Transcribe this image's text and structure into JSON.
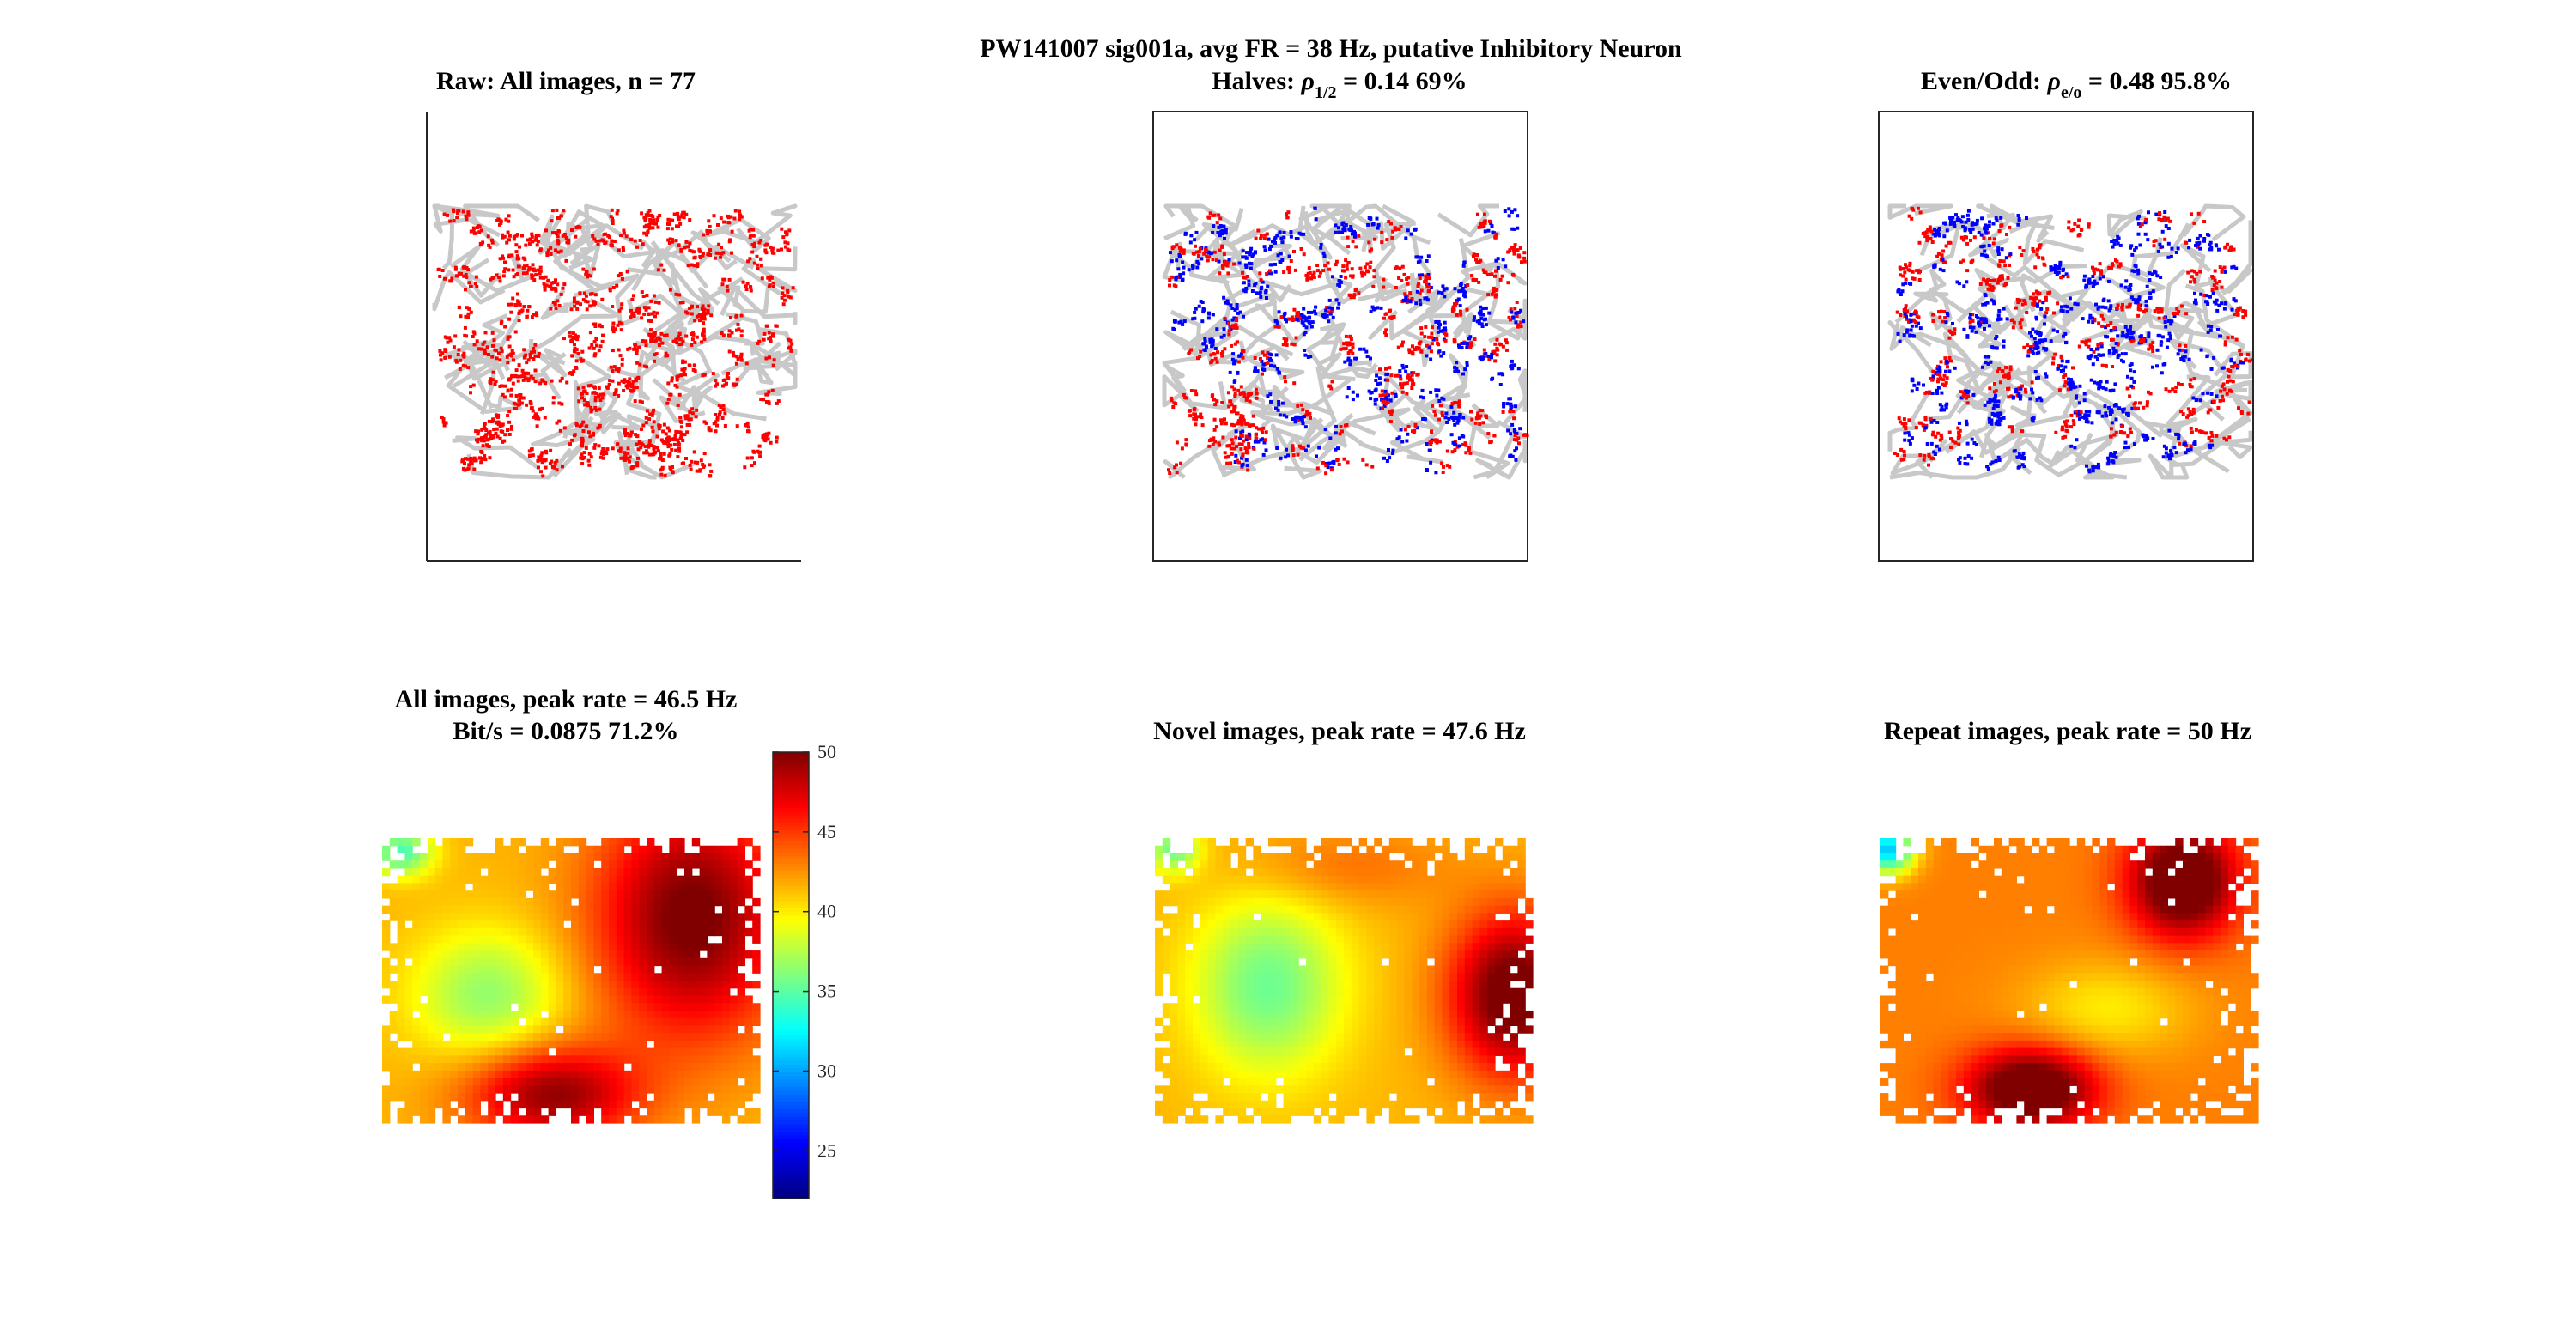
{
  "figure": {
    "suptitle": "PW141007  sig001a, avg FR = 38 Hz, putative Inhibitory Neuron"
  },
  "panels": {
    "raw": {
      "title": "Raw: All images, n = 77"
    },
    "halves": {
      "title_prefix": "Halves: ",
      "rho": "ρ",
      "rho_sub": "1/2",
      "title_suffix": " = 0.14 69%"
    },
    "evenodd": {
      "title_prefix": "Even/Odd: ",
      "rho": "ρ",
      "rho_sub": "e/o",
      "title_suffix": " = 0.48 95.8%"
    },
    "all_map": {
      "title_line1": "All images, peak rate = 46.5 Hz",
      "title_line2": "Bit/s = 0.0875 71.2%"
    },
    "novel_map": {
      "title": "Novel images, peak rate = 47.6 Hz"
    },
    "repeat_map": {
      "title": "Repeat images, peak rate = 50 Hz"
    }
  },
  "colorbar": {
    "colormap": "jet",
    "range": [
      22,
      50
    ],
    "ticks": [
      "50",
      "45",
      "40",
      "35",
      "30",
      "25"
    ],
    "tick_values": [
      50,
      45,
      40,
      35,
      30,
      25
    ]
  },
  "colors": {
    "eye_trace": "#c8c8c8",
    "spike_all": "#ff0000",
    "spike_set1": "#ff0000",
    "spike_set2": "#0000ff"
  },
  "chart_data": [
    {
      "type": "scatter",
      "panel": "raw",
      "title": "Raw: All images, n = 77",
      "description": "eye traces (gray) with spike locations (red)",
      "series": [
        {
          "name": "",
          "color": "#ff0000"
        }
      ]
    },
    {
      "type": "scatter",
      "panel": "halves",
      "title": "Halves: ρ1/2 = 0.14 69%",
      "series": [
        {
          "name": "",
          "color": "#ff0000"
        },
        {
          "name": "",
          "color": "#0000ff"
        }
      ]
    },
    {
      "type": "scatter",
      "panel": "evenodd",
      "title": "Even/Odd: ρe/o = 0.48 95.8%",
      "series": [
        {
          "name": "",
          "color": "#ff0000"
        },
        {
          "name": "",
          "color": "#0000ff"
        }
      ]
    },
    {
      "type": "heatmap",
      "panel": "all_map",
      "title": "All images, peak rate = 46.5 Hz / Bit/s = 0.0875 71.2%",
      "peak": 46.5,
      "clim": [
        22,
        50
      ],
      "blobs": [
        {
          "fx": 0.82,
          "fy": 0.28,
          "sx": 0.18,
          "sy": 0.3,
          "amp": 9
        },
        {
          "fx": 0.45,
          "fy": 0.9,
          "sx": 0.16,
          "sy": 0.12,
          "amp": 8
        },
        {
          "fx": 0.28,
          "fy": 0.55,
          "sx": 0.14,
          "sy": 0.16,
          "amp": -5
        },
        {
          "fx": 0.05,
          "fy": 0.05,
          "sx": 0.06,
          "sy": 0.06,
          "amp": -7
        }
      ],
      "base": 41.5
    },
    {
      "type": "heatmap",
      "panel": "novel_map",
      "title": "Novel images, peak rate = 47.6 Hz",
      "peak": 47.6,
      "clim": [
        22,
        50
      ],
      "blobs": [
        {
          "fx": 0.95,
          "fy": 0.55,
          "sx": 0.12,
          "sy": 0.2,
          "amp": 10
        },
        {
          "fx": 0.3,
          "fy": 0.52,
          "sx": 0.14,
          "sy": 0.22,
          "amp": -6
        },
        {
          "fx": 0.5,
          "fy": 0.1,
          "sx": 0.2,
          "sy": 0.1,
          "amp": 2
        },
        {
          "fx": 0.05,
          "fy": 0.04,
          "sx": 0.05,
          "sy": 0.06,
          "amp": -6
        }
      ],
      "base": 41.5
    },
    {
      "type": "heatmap",
      "panel": "repeat_map",
      "title": "Repeat images, peak rate = 50 Hz",
      "peak": 50,
      "clim": [
        22,
        50
      ],
      "blobs": [
        {
          "fx": 0.8,
          "fy": 0.15,
          "sx": 0.1,
          "sy": 0.14,
          "amp": 10
        },
        {
          "fx": 0.4,
          "fy": 0.88,
          "sx": 0.12,
          "sy": 0.1,
          "amp": 10
        },
        {
          "fx": 0.6,
          "fy": 0.6,
          "sx": 0.16,
          "sy": 0.12,
          "amp": -3
        },
        {
          "fx": 0.02,
          "fy": 0.04,
          "sx": 0.05,
          "sy": 0.06,
          "amp": -12
        }
      ],
      "base": 43
    }
  ]
}
